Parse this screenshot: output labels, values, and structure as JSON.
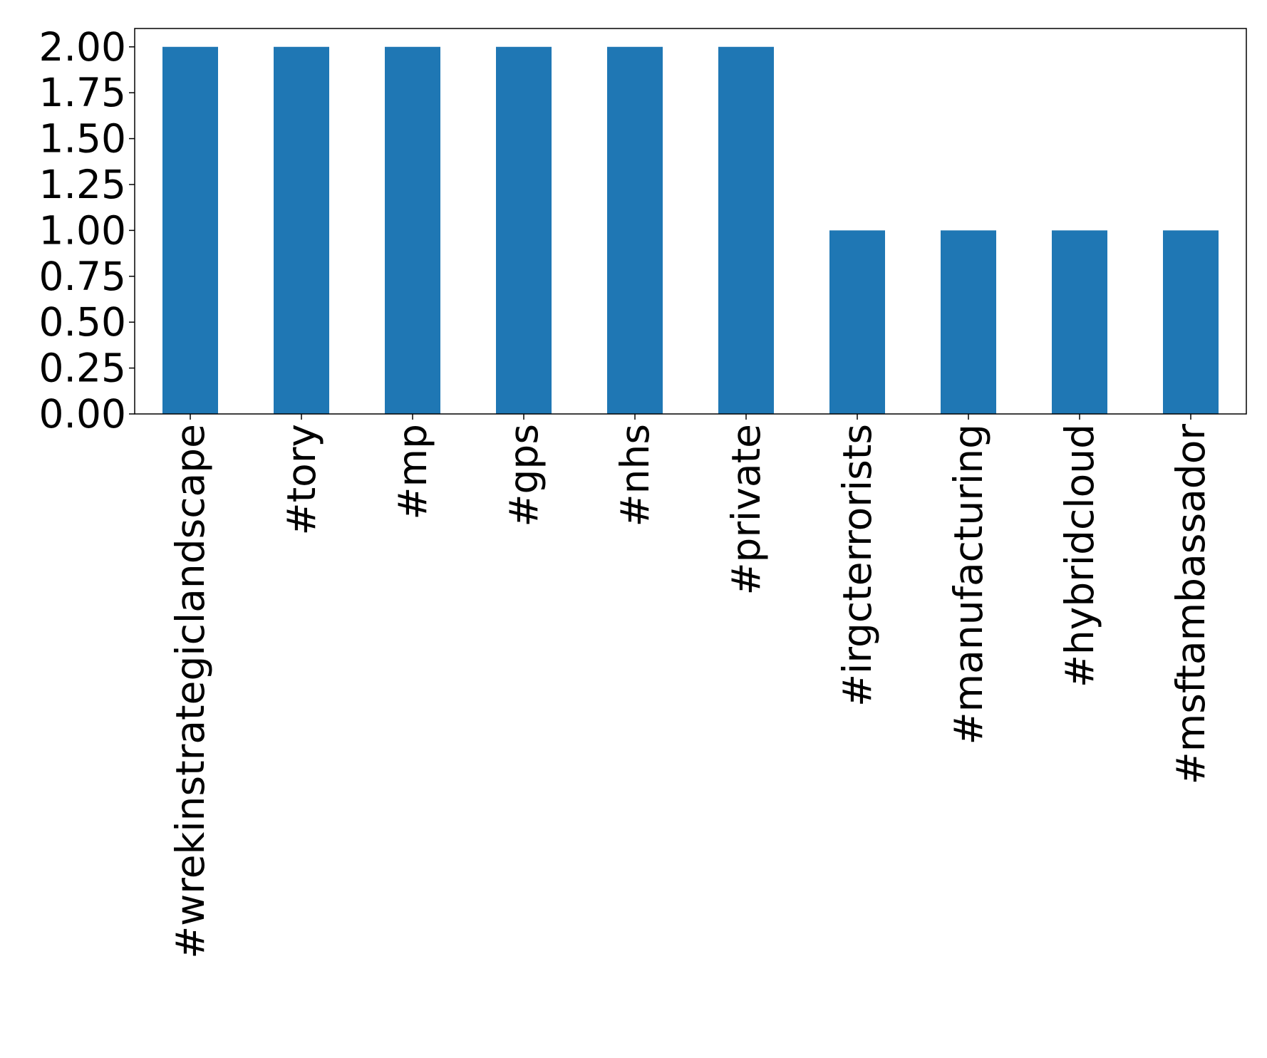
{
  "chart_data": {
    "type": "bar",
    "categories": [
      "#wrekinstrategiclandscape",
      "#tory",
      "#mp",
      "#gps",
      "#nhs",
      "#private",
      "#irgcterrorists",
      "#manufacturing",
      "#hybridcloud",
      "#msftambassador"
    ],
    "values": [
      2,
      2,
      2,
      2,
      2,
      2,
      1,
      1,
      1,
      1
    ],
    "color": "#1f77b4",
    "ylim": [
      0,
      2.1
    ],
    "yticks": [
      {
        "value": 0,
        "label": "0.00"
      },
      {
        "value": 0.25,
        "label": "0.25"
      },
      {
        "value": 0.5,
        "label": "0.50"
      },
      {
        "value": 0.75,
        "label": "0.75"
      },
      {
        "value": 1,
        "label": "1.00"
      },
      {
        "value": 1.25,
        "label": "1.25"
      },
      {
        "value": 1.5,
        "label": "1.50"
      },
      {
        "value": 1.75,
        "label": "1.75"
      },
      {
        "value": 2,
        "label": "2.00"
      }
    ],
    "grid": false
  }
}
